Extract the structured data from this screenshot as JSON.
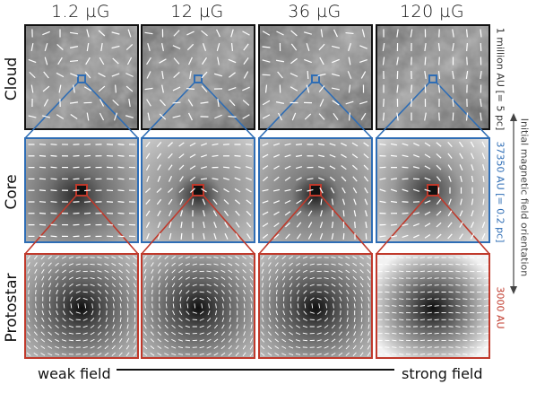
{
  "columns": [
    "1.2 µG",
    "12 µG",
    "36 µG",
    "120 µG"
  ],
  "rows": [
    "Cloud",
    "Core",
    "Protostar"
  ],
  "scales": {
    "cloud": "1 million AU [= 5 pc]",
    "core": "37350 AU [= 0.2 pc]",
    "protostar": "3000 AU"
  },
  "axis_label": "Initial magnetic field orientation",
  "bottom": {
    "left": "weak field",
    "right": "strong field"
  },
  "colors": {
    "cloud_frame": "#111111",
    "core_frame": "#2e6db5",
    "protostar_frame": "#c0392b"
  }
}
